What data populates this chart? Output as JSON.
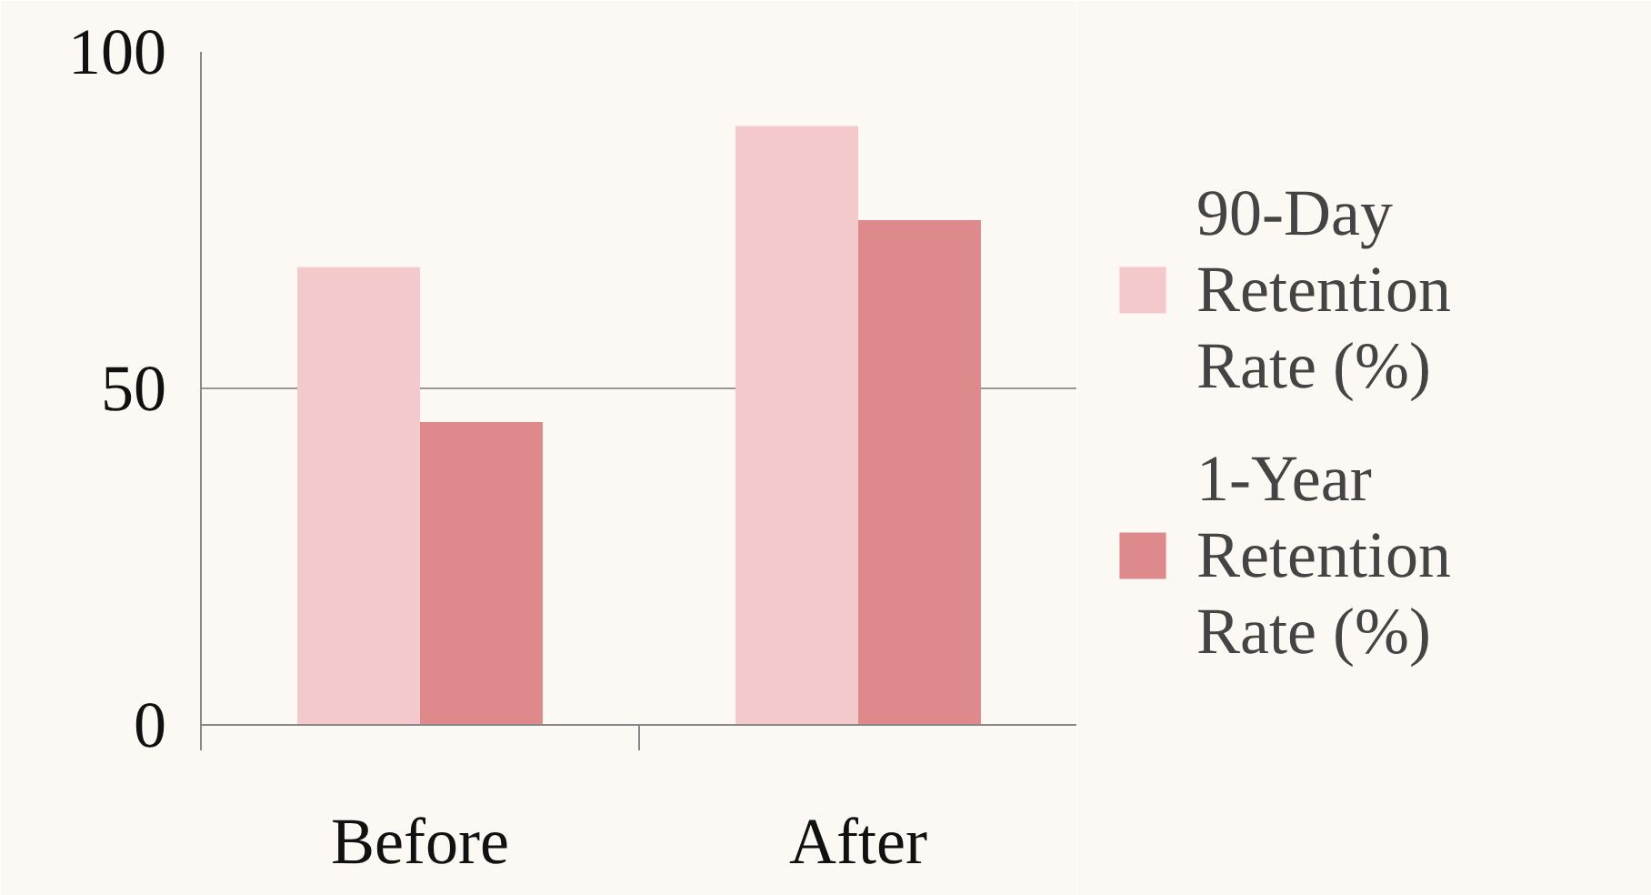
{
  "chart_data": {
    "type": "bar",
    "categories": [
      "Before",
      "After"
    ],
    "series": [
      {
        "name": "90-Day Retention Rate (%)",
        "color": "#f4c9cc",
        "values": [
          68,
          89
        ]
      },
      {
        "name": "1-Year Retention Rate (%)",
        "color": "#de8a8c",
        "values": [
          45,
          75
        ]
      }
    ],
    "ylim": [
      0,
      100
    ],
    "yticks": [
      0,
      50,
      100
    ],
    "grid": "y",
    "legend": "right"
  }
}
